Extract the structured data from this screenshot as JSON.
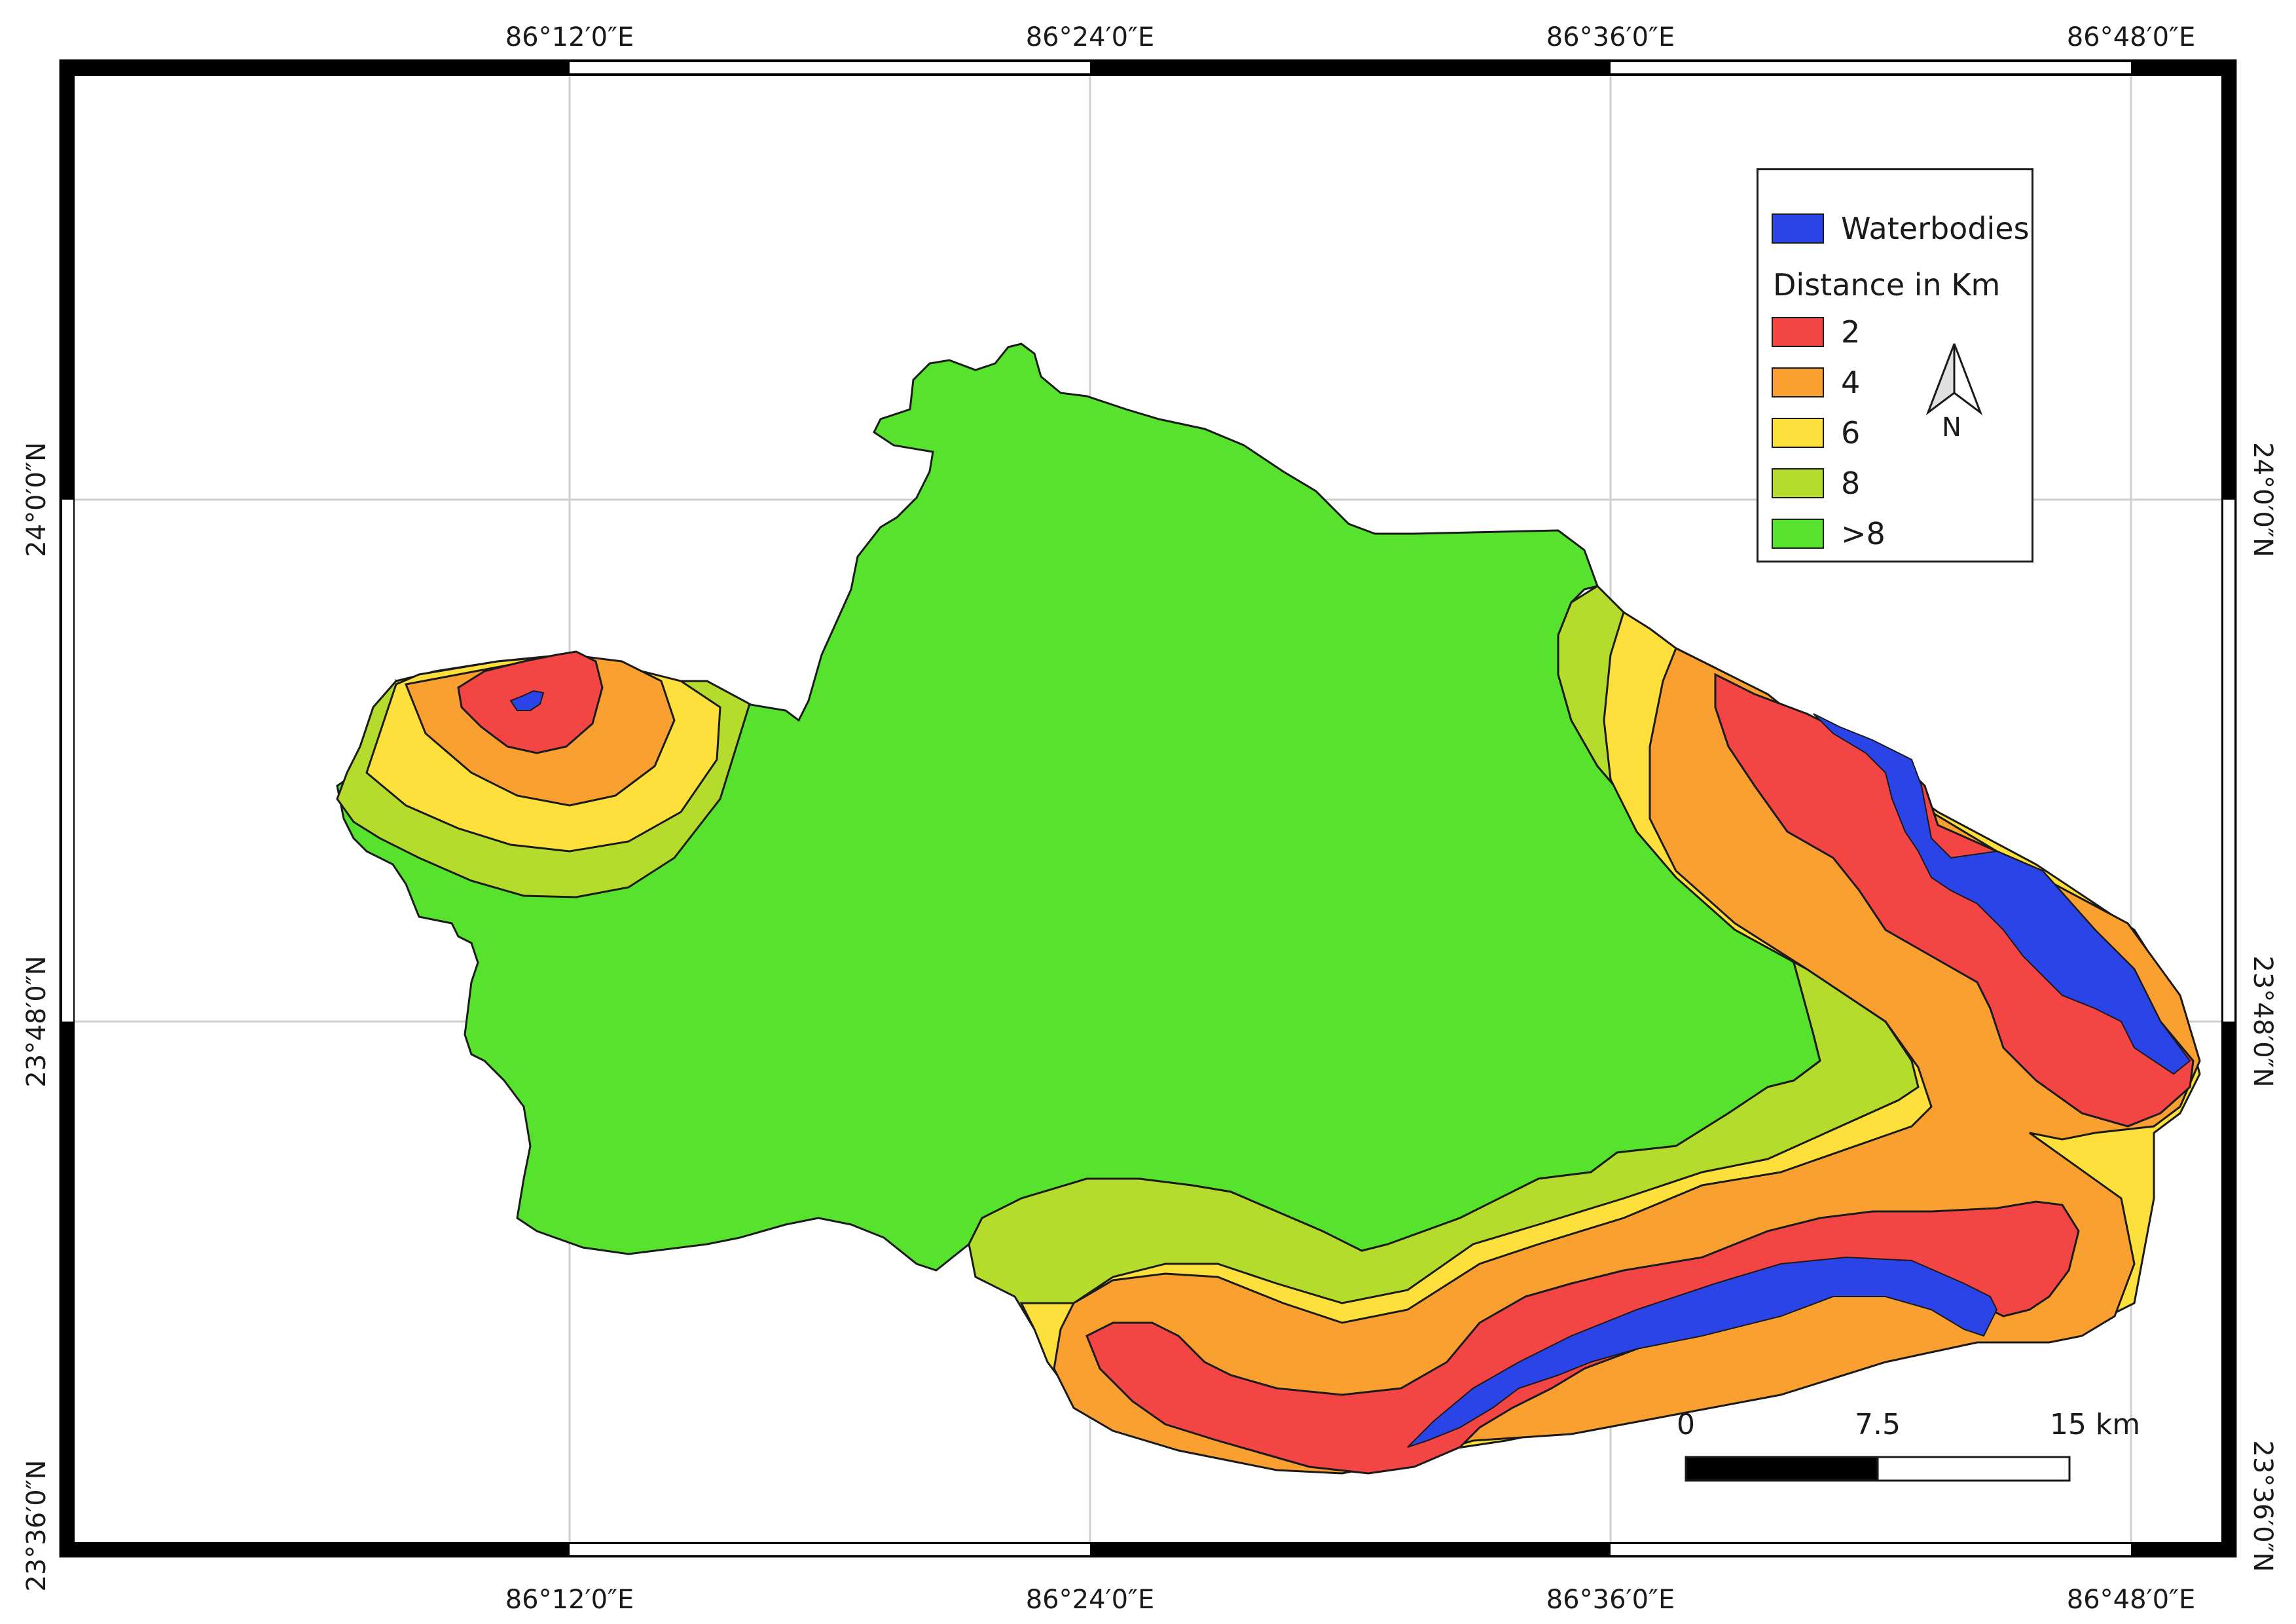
{
  "map": {
    "longitude_labels": [
      "86°12′0″E",
      "86°24′0″E",
      "86°36′0″E",
      "86°48′0″E"
    ],
    "latitude_labels": [
      "24°0′0″N",
      "23°48′0″N",
      "23°36′0″N"
    ],
    "colors": {
      "waterbodies": "#2b44e8",
      "band_2": "#f44545",
      "band_4": "#f9a031",
      "band_6": "#fde03b",
      "band_8": "#b5dc2c",
      "band_gt8": "#57e22e"
    }
  },
  "legend": {
    "water_label": "Waterbodies",
    "heading": "Distance in Km",
    "items": [
      {
        "label": "2",
        "color": "#f44545"
      },
      {
        "label": "4",
        "color": "#f9a031"
      },
      {
        "label": "6",
        "color": "#fde03b"
      },
      {
        "label": "8",
        "color": "#b5dc2c"
      },
      {
        "label": ">8",
        "color": "#57e22e"
      }
    ]
  },
  "north_arrow": {
    "label": "N"
  },
  "scale_bar": {
    "labels": [
      "0",
      "7.5",
      "15 km"
    ]
  }
}
